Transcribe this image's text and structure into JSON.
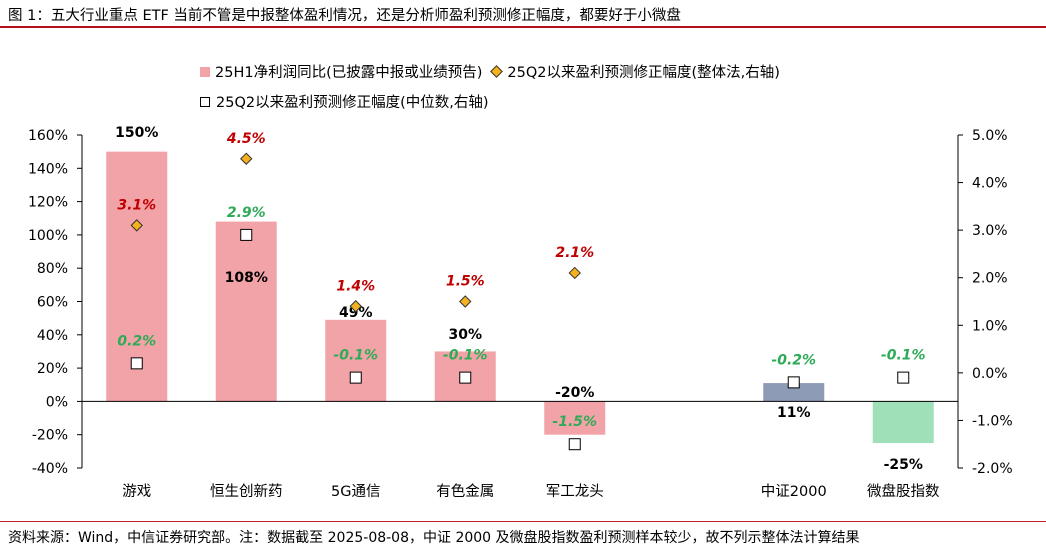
{
  "figure_title": "图 1：五大行业重点 ETF 当前不管是中报整体盈利情况，还是分析师盈利预测修正幅度，都要好于小微盘",
  "footer_text": "资料来源：Wind，中信证券研究部。注：数据截至 2025-08-08，中证 2000 及微盘股指数盈利预测样本较少，故不列示整体法计算结果",
  "colors": {
    "rule": "#b40f1a",
    "bar_positive": "#f2a3a7",
    "bar_csi2000": "#8d9bb6",
    "bar_microcap": "#9fe0b8",
    "diamond": "#f5b11f",
    "label_red": "#c00000",
    "label_green": "#2eab57"
  },
  "chart_data": {
    "type": "bar",
    "categories": [
      "游戏",
      "恒生创新药",
      "5G通信",
      "有色金属",
      "军工龙头",
      "",
      "中证2000",
      "微盘股指数"
    ],
    "series": [
      {
        "name": "25H1净利润同比(已披露中报或业绩预告)",
        "type": "bar",
        "axis": "left",
        "values": [
          150,
          108,
          49,
          30,
          -20,
          null,
          11,
          -25
        ],
        "labels": [
          "150%",
          "108%",
          "49%",
          "30%",
          "-20%",
          "",
          "11%",
          "-25%"
        ]
      },
      {
        "name": "25Q2以来盈利预测修正幅度(整体法,右轴)",
        "type": "scatter",
        "marker": "diamond",
        "axis": "right",
        "values": [
          3.1,
          4.5,
          1.4,
          1.5,
          2.1,
          null,
          null,
          null
        ],
        "labels": [
          "3.1%",
          "4.5%",
          "1.4%",
          "1.5%",
          "2.1%",
          "",
          "",
          ""
        ]
      },
      {
        "name": "25Q2以来盈利预测修正幅度(中位数,右轴)",
        "type": "scatter",
        "marker": "square",
        "axis": "right",
        "values": [
          0.2,
          2.9,
          -0.1,
          -0.1,
          -1.5,
          null,
          -0.2,
          -0.1
        ],
        "labels": [
          "0.2%",
          "2.9%",
          "-0.1%",
          "-0.1%",
          "-1.5%",
          "",
          "-0.2%",
          "-0.1%"
        ]
      }
    ],
    "y_left": {
      "min": -40,
      "max": 160,
      "step": 20,
      "ticks": [
        "-40%",
        "-20%",
        "0%",
        "20%",
        "40%",
        "60%",
        "80%",
        "100%",
        "120%",
        "140%",
        "160%"
      ]
    },
    "y_right": {
      "min": -2,
      "max": 5,
      "step": 1,
      "ticks": [
        "-2.0%",
        "-1.0%",
        "0.0%",
        "1.0%",
        "2.0%",
        "3.0%",
        "4.0%",
        "5.0%"
      ]
    },
    "grid": false,
    "legend_position": "top"
  }
}
